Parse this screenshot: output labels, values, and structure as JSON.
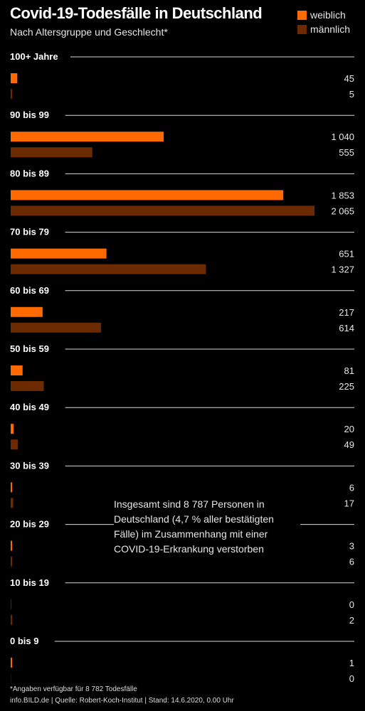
{
  "colors": {
    "background": "#000000",
    "weiblich": "#ff6a00",
    "maennlich": "#6b2a00",
    "gridline": "#d9d9d9",
    "text": "#ffffff"
  },
  "chart_data": {
    "type": "bar",
    "orientation": "horizontal",
    "title": "Covid-19-Todesfälle in Deutschland",
    "subtitle": "Nach Altersgruppe und Geschlecht*",
    "legend_position": "top-right",
    "categories": [
      "100+ Jahre",
      "90 bis 99",
      "80 bis 89",
      "70 bis 79",
      "60 bis 69",
      "50 bis 59",
      "40 bis 49",
      "30 bis 39",
      "20 bis 29",
      "10 bis 19",
      "0 bis 9"
    ],
    "series": [
      {
        "name": "weiblich",
        "values": [
          45,
          1040,
          1853,
          651,
          217,
          81,
          20,
          6,
          3,
          0,
          1
        ],
        "labels": [
          "45",
          "1 040",
          "1 853",
          "651",
          "217",
          "81",
          "20",
          "6",
          "3",
          "0",
          "1"
        ]
      },
      {
        "name": "männlich",
        "values": [
          5,
          555,
          2065,
          1327,
          614,
          225,
          49,
          17,
          6,
          2,
          0
        ],
        "labels": [
          "5",
          "555",
          "2 065",
          "1 327",
          "614",
          "225",
          "49",
          "17",
          "6",
          "2",
          "0"
        ]
      }
    ],
    "xlim": [
      0,
      2065
    ],
    "annotation": "Insgesamt sind 8 787 Personen in Deutschland (4,7 % aller bestätigten Fälle) im Zusammenhang mit einer COVID-19-Erkrankung verstorben",
    "footnote": "*Angaben verfügbar für 8 782 Todesfälle",
    "source": "info.BILD.de | Quelle: Robert-Koch-Institut | Stand: 14.6.2020, 0.00 Uhr"
  }
}
